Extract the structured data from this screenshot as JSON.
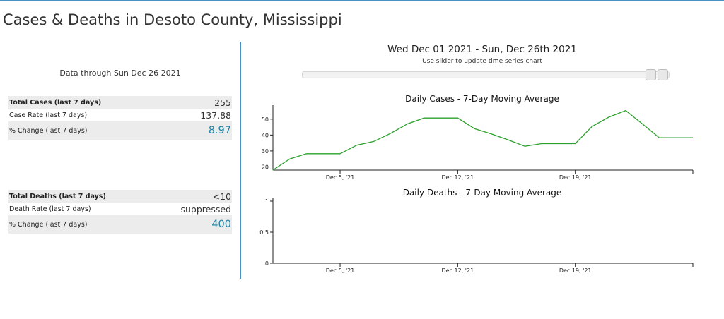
{
  "page": {
    "title": "Cases & Deaths in Desoto County, Mississippi"
  },
  "summary": {
    "data_through": "Data through Sun Dec 26 2021"
  },
  "cases_table": [
    {
      "label": "Total Cases (last 7 days)",
      "value": "255",
      "bold": true
    },
    {
      "label": "Case Rate (last 7 days)",
      "value": "137.88",
      "bold": false
    },
    {
      "label": "% Change (last 7 days)",
      "value": "8.97",
      "bold": false,
      "accent": true
    }
  ],
  "deaths_table": [
    {
      "label": "Total Deaths (last 7 days)",
      "value": "<10",
      "bold": true
    },
    {
      "label": "Death Rate (last 7 days)",
      "value": "suppressed",
      "bold": false
    },
    {
      "label": "% Change (last 7 days)",
      "value": "400",
      "bold": false,
      "accent": true
    }
  ],
  "range": {
    "title": "Wed Dec 01 2021 - Sun, Dec 26th 2021",
    "hint": "Use slider to update time series chart",
    "slider_start": "Dec 25 2021",
    "slider_end": "Dec 26 2021"
  },
  "colors": {
    "accent": "#1b84a7",
    "line": "#2ca02c",
    "divider": "#4a90c4"
  },
  "chart_data": [
    {
      "type": "line",
      "title": "Daily Cases - 7-Day Moving Average",
      "x": [
        "Dec 1",
        "Dec 2",
        "Dec 3",
        "Dec 4",
        "Dec 5",
        "Dec 6",
        "Dec 7",
        "Dec 8",
        "Dec 9",
        "Dec 10",
        "Dec 11",
        "Dec 12",
        "Dec 13",
        "Dec 14",
        "Dec 15",
        "Dec 16",
        "Dec 17",
        "Dec 18",
        "Dec 19",
        "Dec 20",
        "Dec 21",
        "Dec 22",
        "Dec 23",
        "Dec 24",
        "Dec 25",
        "Dec 26"
      ],
      "series": [
        {
          "values": [
            18,
            25,
            28.3,
            28.3,
            28.3,
            33.7,
            36,
            41,
            47,
            50.7,
            50.7,
            50.7,
            44,
            40.7,
            37,
            33,
            34.6,
            34.6,
            34.6,
            45.4,
            51.3,
            55.4,
            47,
            38.3,
            38.3,
            38.3
          ]
        }
      ],
      "xticks": [
        "Dec 5, '21",
        "Dec 12, '21",
        "Dec 19, '21"
      ],
      "yticks": [
        "20",
        "30",
        "40",
        "50"
      ],
      "ylim": [
        18,
        57
      ]
    },
    {
      "type": "line",
      "title": "Daily Deaths - 7-Day Moving Average",
      "x": [
        "Dec 1",
        "Dec 26"
      ],
      "series": [],
      "xticks": [
        "Dec 5, '21",
        "Dec 12, '21",
        "Dec 19, '21"
      ],
      "yticks": [
        "0",
        "0.5",
        "1"
      ],
      "ylim": [
        0,
        1
      ]
    }
  ]
}
